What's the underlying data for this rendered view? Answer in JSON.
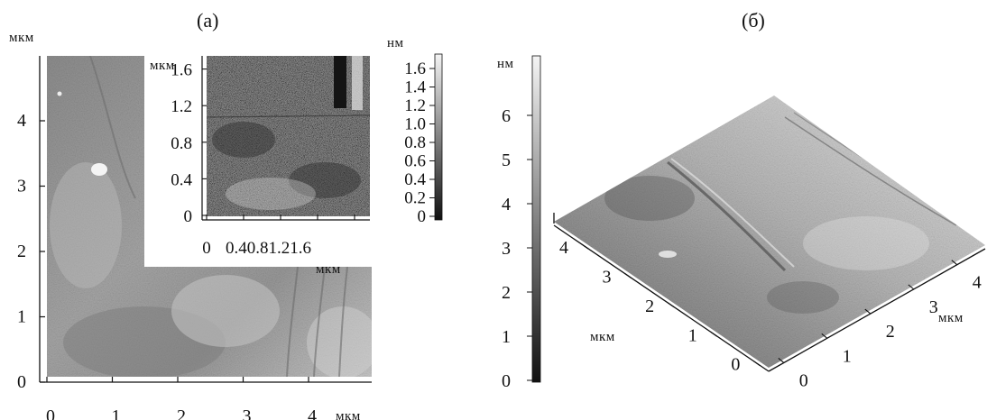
{
  "panels": [
    {
      "label": "(a)",
      "main_map": {
        "y_unit": "мкм",
        "x_unit": "мкм",
        "y_ticks": [
          "0",
          "1",
          "2",
          "3",
          "4"
        ],
        "x_ticks": [
          "0",
          "1",
          "2",
          "3",
          "4"
        ]
      },
      "inset": {
        "y_unit": "мкм",
        "x_unit": "мкм",
        "y_ticks": [
          "0",
          "0.4",
          "0.8",
          "1.2",
          "1.6"
        ],
        "x_ticks": [
          "0",
          "0.40.81.21.6"
        ]
      },
      "colorbar": {
        "unit": "нм",
        "ticks": [
          "0",
          "0.2",
          "0.4",
          "0.6",
          "0.8",
          "1.0",
          "1.2",
          "1.4",
          "1.6"
        ]
      }
    },
    {
      "label": "(б)",
      "colorbar": {
        "unit": "нм",
        "ticks": [
          "0",
          "1",
          "2",
          "3",
          "4",
          "5",
          "6"
        ]
      },
      "surface": {
        "left_axis_unit": "мкм",
        "left_axis_ticks": [
          "0",
          "1",
          "2",
          "3",
          "4"
        ],
        "right_axis_unit": "мкм",
        "right_axis_ticks": [
          "0",
          "1",
          "2",
          "3",
          "4"
        ]
      }
    }
  ],
  "colors": {
    "surface_dark": "#5a5a5a",
    "surface_light": "#dcdcdc",
    "axis": "#111111"
  }
}
